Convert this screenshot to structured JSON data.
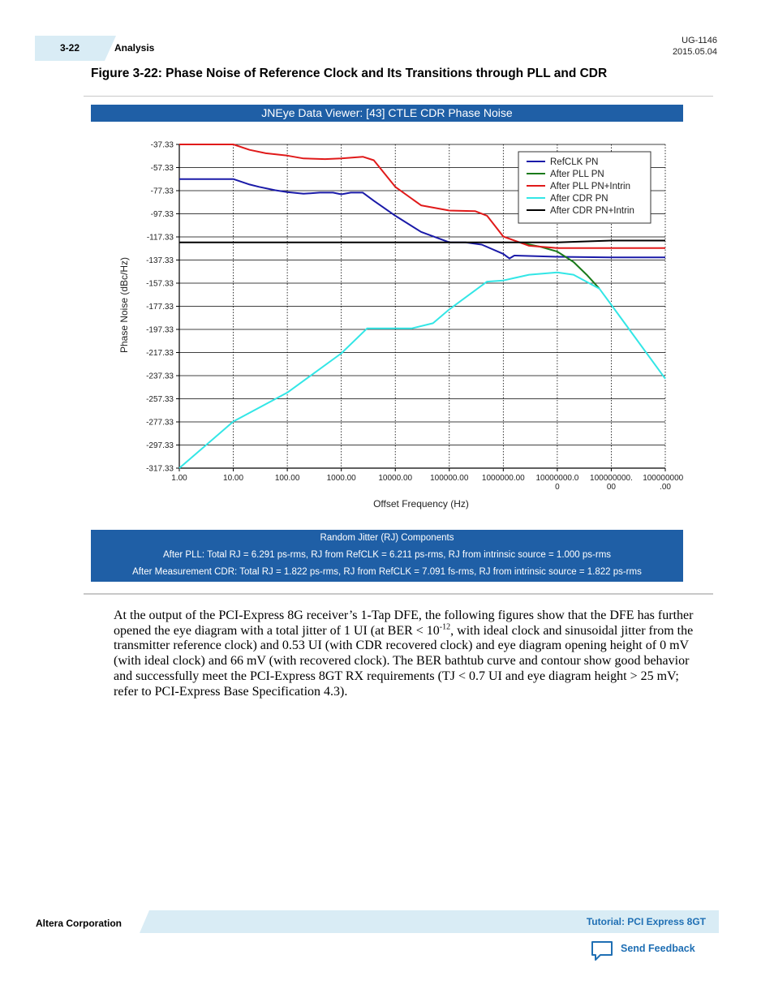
{
  "header": {
    "page_number": "3-22",
    "section": "Analysis",
    "doc_id": "UG-1146",
    "date": "2015.05.04"
  },
  "figure": {
    "caption": "Figure 3-22: Phase Noise of Reference Clock and Its Transitions through PLL and CDR",
    "viewer_title": "JNEye Data Viewer: [43] CTLE CDR Phase Noise"
  },
  "colors": {
    "refclk": "#1a1aa8",
    "after_pll": "#1a7a1a",
    "after_pll_intrin": "#e01a1a",
    "after_cdr": "#33e6e6",
    "after_cdr_intrin": "#000000",
    "panel_blue": "#1f5fa6",
    "accent_blue": "#1f6fb4"
  },
  "chart_data": {
    "type": "line",
    "xlabel": "Offset Frequency (Hz)",
    "ylabel": "Phase Noise (dBc/Hz)",
    "x_scale": "log",
    "xlim": [
      1,
      1000000000
    ],
    "ylim": [
      -317.33,
      -37.33
    ],
    "x_tick_labels": [
      [
        "1.00"
      ],
      [
        "10.00"
      ],
      [
        "100.00"
      ],
      [
        "1000.00"
      ],
      [
        "10000.00"
      ],
      [
        "100000.00"
      ],
      [
        "1000000.00"
      ],
      [
        "10000000.0",
        "0"
      ],
      [
        "100000000.",
        "00"
      ],
      [
        "1000000000",
        ".00"
      ]
    ],
    "y_tick_labels": [
      "-37.33",
      "-57.33",
      "-77.33",
      "-97.33",
      "-117.33",
      "-137.33",
      "-157.33",
      "-177.33",
      "-197.33",
      "-217.33",
      "-237.33",
      "-257.33",
      "-277.33",
      "-297.33",
      "-317.33"
    ],
    "grid": true,
    "legend_position": "top-right",
    "series": [
      {
        "name": "RefCLK PN",
        "color": "#1a1aa8",
        "points": [
          [
            1,
            -67.3
          ],
          [
            10,
            -67.3
          ],
          [
            20,
            -72
          ],
          [
            30,
            -74
          ],
          [
            60,
            -77
          ],
          [
            100,
            -78.5
          ],
          [
            200,
            -80
          ],
          [
            400,
            -79
          ],
          [
            700,
            -79
          ],
          [
            1000,
            -80.5
          ],
          [
            1500,
            -79
          ],
          [
            2500,
            -79
          ],
          [
            4000,
            -86
          ],
          [
            10000,
            -99
          ],
          [
            30000,
            -113
          ],
          [
            100000,
            -122
          ],
          [
            200000,
            -122
          ],
          [
            400000,
            -124
          ],
          [
            1000000,
            -132
          ],
          [
            1300000,
            -136
          ],
          [
            1600000,
            -133.5
          ],
          [
            10000000,
            -134.5
          ],
          [
            100000000,
            -135
          ],
          [
            1000000000,
            -135
          ]
        ]
      },
      {
        "name": "After PLL PN",
        "color": "#1a7a1a",
        "points": [
          [
            2000000,
            -122
          ],
          [
            5000000,
            -126
          ],
          [
            10000000,
            -130
          ],
          [
            20000000,
            -139
          ],
          [
            35000000,
            -150
          ],
          [
            60000000,
            -162
          ]
        ]
      },
      {
        "name": "After PLL PN+Intrin",
        "color": "#e01a1a",
        "points": [
          [
            1,
            -37.3
          ],
          [
            10,
            -37.3
          ],
          [
            20,
            -42
          ],
          [
            40,
            -45
          ],
          [
            100,
            -47
          ],
          [
            200,
            -49.5
          ],
          [
            500,
            -50
          ],
          [
            1000,
            -49.5
          ],
          [
            2500,
            -48
          ],
          [
            4000,
            -51
          ],
          [
            10000,
            -74
          ],
          [
            30000,
            -90
          ],
          [
            100000,
            -94.5
          ],
          [
            300000,
            -95
          ],
          [
            500000,
            -99
          ],
          [
            1000000,
            -117
          ],
          [
            3000000,
            -125
          ],
          [
            10000000,
            -127
          ],
          [
            1000000000,
            -127
          ]
        ]
      },
      {
        "name": "After CDR PN",
        "color": "#33e6e6",
        "points": [
          [
            1,
            -317.3
          ],
          [
            10,
            -277
          ],
          [
            100,
            -252
          ],
          [
            1000,
            -218
          ],
          [
            3000,
            -196.5
          ],
          [
            20000,
            -196.5
          ],
          [
            50000,
            -192
          ],
          [
            100000,
            -180
          ],
          [
            500000,
            -156
          ],
          [
            1000000,
            -155
          ],
          [
            3000000,
            -150
          ],
          [
            10000000,
            -148
          ],
          [
            20000000,
            -150
          ],
          [
            60000000,
            -162
          ],
          [
            100000000,
            -176
          ],
          [
            1000000000,
            -240
          ]
        ]
      },
      {
        "name": "After CDR PN+Intrin",
        "color": "#000000",
        "points": [
          [
            1,
            -122
          ],
          [
            10000000,
            -122
          ],
          [
            100000000,
            -120.5
          ],
          [
            1000000000,
            -120.5
          ]
        ]
      }
    ]
  },
  "rj": {
    "title": "Random Jitter (RJ) Components",
    "line1": "After PLL: Total RJ = 6.291 ps-rms, RJ from RefCLK = 6.211 ps-rms, RJ from intrinsic source = 1.000 ps-rms",
    "line2": "After Measurement CDR: Total RJ = 1.822 ps-rms, RJ from RefCLK = 7.091 fs-rms, RJ from intrinsic source = 1.822 ps-rms"
  },
  "body": {
    "before_sup": "At the output of the PCI-Express 8G receiver’s 1-Tap DFE, the following figures show that the DFE has further opened the eye diagram with a total jitter of 1 UI (at BER < 10",
    "sup": "-12",
    "after_sup": ", with ideal clock and sinusoidal jitter from the transmitter reference clock) and 0.53 UI (with CDR recovered clock) and eye diagram opening height of 0 mV (with ideal clock) and 66 mV (with recovered clock). The BER bathtub curve and contour show good behavior and successfully meet the PCI-Express 8GT RX requirements (TJ < 0.7 UI and eye diagram height > 25 mV; refer to PCI-Express Base Specification 4.3)."
  },
  "footer": {
    "company": "Altera Corporation",
    "doc_title": "Tutorial: PCI Express 8GT",
    "feedback": "Send Feedback"
  }
}
